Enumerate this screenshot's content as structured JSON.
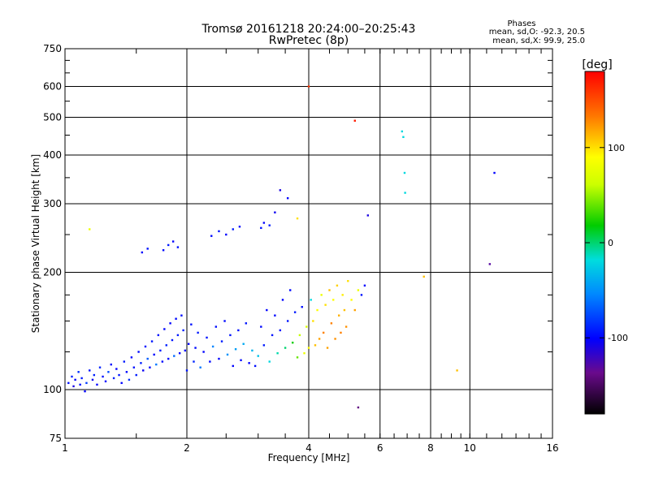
{
  "chart_data": {
    "type": "scatter",
    "title": "Tromsø 20161218 20:24:00–20:25:43",
    "subtitle": "RwPretec (8p)",
    "xlabel": "Frequency [MHz]",
    "ylabel": "Stationary phase Virtual Height [km]",
    "x_scale": "log",
    "y_scale": "log",
    "xlim": [
      1,
      16
    ],
    "ylim": [
      75,
      750
    ],
    "x_ticks": [
      1,
      2,
      4,
      6,
      8,
      10,
      16
    ],
    "x_tick_labels": [
      "1",
      "2",
      "4",
      "6",
      "8",
      "10",
      "16"
    ],
    "y_ticks": [
      75,
      100,
      200,
      300,
      400,
      500,
      600,
      750
    ],
    "y_tick_labels": [
      "75",
      "100",
      "200",
      "300",
      "400",
      "500",
      "600",
      "750"
    ],
    "grid": true,
    "phase_stats": {
      "heading": "Phases",
      "line_o": "mean, sd,O:  -92.3, 20.5",
      "line_x": "mean, sd,X:  99.9, 25.0"
    },
    "colorbar": {
      "label": "[deg]",
      "range": [
        -180,
        180
      ],
      "ticks": [
        100,
        0,
        -100
      ],
      "tick_labels": [
        "100",
        "0",
        "-100"
      ]
    },
    "series": [
      {
        "points": [
          [
            1.02,
            104,
            -95
          ],
          [
            1.04,
            108,
            -90
          ],
          [
            1.05,
            102,
            -110
          ],
          [
            1.06,
            106,
            -100
          ],
          [
            1.08,
            111,
            -85
          ],
          [
            1.09,
            103,
            -95
          ],
          [
            1.1,
            107,
            -92
          ],
          [
            1.12,
            99,
            -100
          ],
          [
            1.13,
            104,
            -80
          ],
          [
            1.15,
            112,
            -95
          ],
          [
            1.17,
            106,
            -105
          ],
          [
            1.18,
            109,
            -90
          ],
          [
            1.2,
            103,
            -100
          ],
          [
            1.22,
            114,
            -88
          ],
          [
            1.24,
            108,
            -96
          ],
          [
            1.26,
            105,
            -100
          ],
          [
            1.28,
            111,
            -75
          ],
          [
            1.3,
            116,
            -98
          ],
          [
            1.32,
            107,
            -90
          ],
          [
            1.34,
            113,
            -102
          ],
          [
            1.36,
            109,
            -94
          ],
          [
            1.38,
            104,
            -100
          ],
          [
            1.4,
            118,
            -92
          ],
          [
            1.42,
            111,
            -98
          ],
          [
            1.44,
            106,
            -85
          ],
          [
            1.46,
            121,
            -100
          ],
          [
            1.48,
            114,
            -95
          ],
          [
            1.5,
            109,
            -92
          ],
          [
            1.52,
            125,
            -98
          ],
          [
            1.54,
            117,
            -90
          ],
          [
            1.56,
            112,
            -104
          ],
          [
            1.58,
            129,
            -96
          ],
          [
            1.6,
            120,
            -70
          ],
          [
            1.62,
            114,
            -100
          ],
          [
            1.64,
            133,
            -94
          ],
          [
            1.66,
            123,
            -99
          ],
          [
            1.68,
            116,
            -60
          ],
          [
            1.7,
            138,
            -95
          ],
          [
            1.72,
            126,
            -92
          ],
          [
            1.74,
            118,
            -98
          ],
          [
            1.76,
            143,
            -100
          ],
          [
            1.78,
            130,
            -90
          ],
          [
            1.8,
            120,
            -96
          ],
          [
            1.82,
            148,
            -100
          ],
          [
            1.84,
            134,
            -94
          ],
          [
            1.86,
            122,
            -65
          ],
          [
            1.88,
            152,
            -98
          ],
          [
            1.9,
            138,
            -92
          ],
          [
            1.92,
            124,
            -100
          ],
          [
            1.94,
            155,
            -96
          ],
          [
            1.96,
            142,
            -90
          ],
          [
            1.98,
            126,
            -98
          ],
          [
            2.0,
            112,
            -94
          ],
          [
            2.02,
            131,
            -100
          ],
          [
            2.05,
            147,
            -95
          ],
          [
            2.08,
            118,
            -88
          ],
          [
            2.1,
            128,
            -98
          ],
          [
            2.13,
            140,
            -92
          ],
          [
            2.16,
            114,
            -60
          ],
          [
            2.2,
            125,
            -100
          ],
          [
            2.24,
            136,
            -94
          ],
          [
            2.28,
            118,
            -98
          ],
          [
            2.32,
            129,
            -55
          ],
          [
            2.36,
            145,
            -96
          ],
          [
            2.4,
            120,
            -100
          ],
          [
            2.44,
            133,
            -92
          ],
          [
            2.48,
            150,
            -98
          ],
          [
            2.52,
            123,
            -50
          ],
          [
            2.56,
            138,
            -94
          ],
          [
            2.6,
            115,
            -100
          ],
          [
            2.64,
            127,
            -45
          ],
          [
            2.68,
            142,
            -96
          ],
          [
            2.72,
            119,
            -98
          ],
          [
            2.76,
            131,
            -40
          ],
          [
            2.8,
            148,
            -94
          ],
          [
            2.85,
            117,
            -100
          ],
          [
            2.9,
            126,
            -35
          ],
          [
            2.95,
            115,
            -96
          ],
          [
            3.0,
            122,
            -30
          ],
          [
            3.05,
            145,
            -98
          ],
          [
            3.1,
            130,
            -92
          ],
          [
            3.15,
            160,
            -100
          ],
          [
            3.2,
            118,
            -20
          ],
          [
            3.25,
            138,
            -94
          ],
          [
            3.3,
            155,
            -98
          ],
          [
            3.35,
            124,
            -10
          ],
          [
            3.4,
            142,
            -96
          ],
          [
            3.45,
            170,
            -100
          ],
          [
            3.5,
            128,
            0
          ],
          [
            3.55,
            150,
            -94
          ],
          [
            3.6,
            180,
            -98
          ],
          [
            3.65,
            132,
            20
          ],
          [
            3.7,
            158,
            -92
          ],
          [
            3.75,
            121,
            40
          ],
          [
            3.8,
            138,
            60
          ],
          [
            3.85,
            163,
            -96
          ],
          [
            3.9,
            124,
            80
          ],
          [
            3.95,
            145,
            70
          ],
          [
            4.0,
            128,
            90
          ],
          [
            4.05,
            170,
            -20
          ],
          [
            4.1,
            150,
            100
          ],
          [
            4.15,
            130,
            110
          ],
          [
            4.2,
            160,
            90
          ],
          [
            4.25,
            135,
            120
          ],
          [
            4.3,
            175,
            80
          ],
          [
            4.35,
            140,
            130
          ],
          [
            4.4,
            165,
            100
          ],
          [
            4.45,
            128,
            120
          ],
          [
            4.5,
            180,
            110
          ],
          [
            4.55,
            148,
            130
          ],
          [
            4.6,
            170,
            90
          ],
          [
            4.65,
            135,
            125
          ],
          [
            4.7,
            185,
            105
          ],
          [
            4.75,
            155,
            115
          ],
          [
            4.8,
            140,
            130
          ],
          [
            4.85,
            175,
            95
          ],
          [
            4.9,
            160,
            110
          ],
          [
            4.95,
            145,
            125
          ],
          [
            5.0,
            190,
            100
          ],
          [
            5.1,
            170,
            90
          ],
          [
            5.2,
            160,
            120
          ],
          [
            5.3,
            180,
            80
          ],
          [
            5.4,
            175,
            -95
          ],
          [
            5.5,
            185,
            -100
          ],
          [
            1.55,
            225,
            -100
          ],
          [
            1.6,
            230,
            -95
          ],
          [
            1.75,
            228,
            -98
          ],
          [
            1.8,
            235,
            -92
          ],
          [
            1.85,
            240,
            -100
          ],
          [
            1.9,
            232,
            -96
          ],
          [
            2.3,
            248,
            -98
          ],
          [
            2.4,
            255,
            -94
          ],
          [
            2.5,
            250,
            -100
          ],
          [
            2.6,
            258,
            -92
          ],
          [
            2.7,
            262,
            -98
          ],
          [
            3.05,
            260,
            -95
          ],
          [
            3.1,
            268,
            -100
          ],
          [
            3.2,
            264,
            -92
          ],
          [
            3.3,
            285,
            -105
          ],
          [
            3.4,
            325,
            -110
          ],
          [
            3.55,
            310,
            -100
          ],
          [
            1.15,
            258,
            80
          ],
          [
            3.75,
            275,
            100
          ],
          [
            4.0,
            600,
            160
          ],
          [
            5.2,
            490,
            170
          ],
          [
            6.8,
            460,
            -20
          ],
          [
            6.85,
            445,
            -20
          ],
          [
            6.9,
            360,
            -20
          ],
          [
            6.92,
            320,
            -20
          ],
          [
            7.7,
            195,
            110
          ],
          [
            9.3,
            112,
            110
          ],
          [
            11.2,
            210,
            -130
          ],
          [
            11.5,
            360,
            -100
          ],
          [
            5.6,
            280,
            -110
          ],
          [
            5.3,
            90,
            -140
          ]
        ]
      }
    ]
  }
}
